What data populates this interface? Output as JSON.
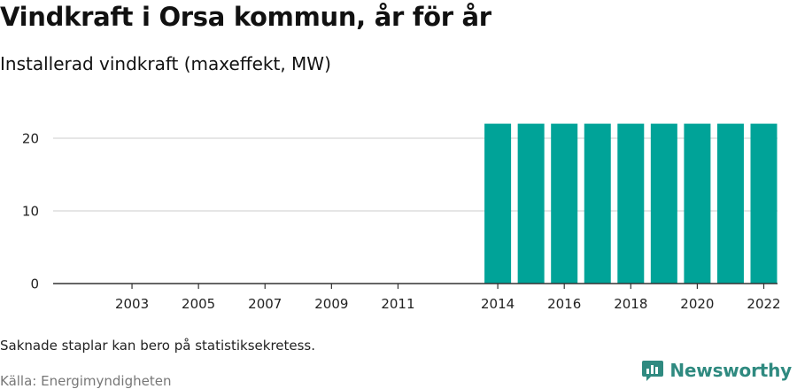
{
  "header": {
    "title": "Vindkraft i Orsa kommun, år för år",
    "subtitle": "Installerad vindkraft (maxeffekt, MW)"
  },
  "footer": {
    "note": "Saknade staplar kan bero på statistiksekretess.",
    "source": "Källa: Energimyndigheten",
    "brand": "Newsworthy"
  },
  "colors": {
    "bar": "#00a398",
    "grid": "#dddddd",
    "axis": "#333333",
    "brand": "#2f8a80"
  },
  "icons": {
    "brand_logo": "bar-chart-speech-bubble-icon"
  },
  "chart_data": {
    "type": "bar",
    "title": "Vindkraft i Orsa kommun, år för år",
    "subtitle": "Installerad vindkraft (maxeffekt, MW)",
    "xlabel": "",
    "ylabel": "",
    "ylim": [
      0,
      24
    ],
    "yticks": [
      0,
      10,
      20
    ],
    "categories": [
      "2002",
      "2003",
      "2004",
      "2005",
      "2006",
      "2007",
      "2008",
      "2009",
      "2010",
      "2011",
      "2012",
      "2013",
      "2014",
      "2015",
      "2016",
      "2017",
      "2018",
      "2019",
      "2020",
      "2021",
      "2022"
    ],
    "xtick_labels": [
      "2003",
      "2005",
      "2007",
      "2009",
      "2011",
      "2014",
      "2016",
      "2018",
      "2020",
      "2022"
    ],
    "values": [
      null,
      null,
      null,
      null,
      null,
      null,
      null,
      null,
      null,
      null,
      null,
      null,
      22,
      22,
      22,
      22,
      22,
      22,
      22,
      22,
      22
    ],
    "grid": true,
    "legend": "none"
  }
}
